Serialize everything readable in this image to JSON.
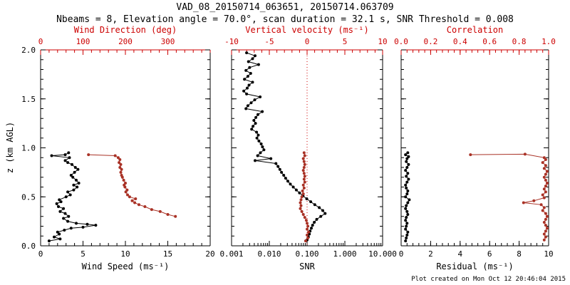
{
  "header": {
    "title": "VAD_08_20150714_063651, 20150714.063709",
    "subtitle": "Nbeams = 8, Elevation angle = 70.0°, scan duration = 32.1 s, SNR Threshold = 0.008"
  },
  "footer": {
    "created": "Plot created on Mon Oct 12 20:46:04 2015"
  },
  "ylabel": "z (km AGL)",
  "colors": {
    "axis_red": "#cc0000",
    "data_red": "#a93226",
    "data_black": "#000000"
  },
  "chart_data": [
    {
      "type": "line",
      "name": "wind-panel",
      "xlabel_bottom": "Wind Speed (ms⁻¹)",
      "xlabel_top": "Wind Direction (deg)",
      "xscale_bottom": "linear",
      "xlim_bottom": [
        0,
        20
      ],
      "xticks_bottom": [
        0,
        5,
        10,
        15,
        20
      ],
      "xtick_labels_bottom": [
        "0",
        "5",
        "10",
        "15",
        "20"
      ],
      "xlim_top": [
        0,
        400
      ],
      "xticks_top": [
        0,
        100,
        200,
        300
      ],
      "xtick_labels_top": [
        "0",
        "100",
        "200",
        "300"
      ],
      "ylim": [
        0,
        2
      ],
      "yticks": [
        0,
        0.5,
        1,
        1.5,
        2
      ],
      "ytick_labels": [
        "0.0",
        "0.5",
        "1.0",
        "1.5",
        "2.0"
      ],
      "show_ytick_labels": true,
      "series": [
        {
          "name": "wind-speed",
          "axis": "bottom",
          "color": "black",
          "points": [
            [
              1.0,
              0.05
            ],
            [
              2.3,
              0.07
            ],
            [
              1.6,
              0.09
            ],
            [
              2.2,
              0.12
            ],
            [
              2.0,
              0.14
            ],
            [
              2.8,
              0.16
            ],
            [
              3.6,
              0.18
            ],
            [
              5.0,
              0.19
            ],
            [
              6.5,
              0.21
            ],
            [
              5.5,
              0.22
            ],
            [
              4.2,
              0.23
            ],
            [
              3.2,
              0.25
            ],
            [
              2.7,
              0.28
            ],
            [
              3.3,
              0.3
            ],
            [
              2.9,
              0.33
            ],
            [
              2.3,
              0.35
            ],
            [
              2.7,
              0.38
            ],
            [
              2.1,
              0.4
            ],
            [
              1.9,
              0.43
            ],
            [
              2.4,
              0.45
            ],
            [
              2.2,
              0.47
            ],
            [
              3.0,
              0.5
            ],
            [
              3.5,
              0.52
            ],
            [
              3.2,
              0.55
            ],
            [
              3.9,
              0.57
            ],
            [
              4.3,
              0.6
            ],
            [
              3.9,
              0.62
            ],
            [
              4.5,
              0.64
            ],
            [
              4.2,
              0.67
            ],
            [
              3.8,
              0.7
            ],
            [
              3.6,
              0.72
            ],
            [
              4.0,
              0.75
            ],
            [
              4.4,
              0.78
            ],
            [
              4.1,
              0.8
            ],
            [
              3.7,
              0.83
            ],
            [
              3.2,
              0.85
            ],
            [
              2.9,
              0.87
            ],
            [
              3.4,
              0.9
            ],
            [
              1.3,
              0.92
            ],
            [
              2.9,
              0.93
            ],
            [
              3.3,
              0.95
            ]
          ]
        },
        {
          "name": "wind-direction",
          "axis": "top",
          "color": "red",
          "points": [
            [
              318,
              0.3
            ],
            [
              300,
              0.32
            ],
            [
              282,
              0.35
            ],
            [
              262,
              0.37
            ],
            [
              246,
              0.4
            ],
            [
              232,
              0.42
            ],
            [
              222,
              0.44
            ],
            [
              216,
              0.46
            ],
            [
              224,
              0.48
            ],
            [
              210,
              0.5
            ],
            [
              205,
              0.52
            ],
            [
              201,
              0.55
            ],
            [
              204,
              0.57
            ],
            [
              199,
              0.6
            ],
            [
              197,
              0.62
            ],
            [
              200,
              0.64
            ],
            [
              196,
              0.67
            ],
            [
              193,
              0.7
            ],
            [
              191,
              0.72
            ],
            [
              189,
              0.75
            ],
            [
              191,
              0.78
            ],
            [
              187,
              0.8
            ],
            [
              189,
              0.83
            ],
            [
              185,
              0.85
            ],
            [
              187,
              0.88
            ],
            [
              183,
              0.9
            ],
            [
              176,
              0.92
            ],
            [
              113,
              0.93
            ]
          ]
        }
      ]
    },
    {
      "type": "line",
      "name": "snr-panel",
      "xlabel_bottom": "SNR",
      "xlabel_top": "Vertical velocity (ms⁻¹)",
      "xscale_bottom": "log",
      "xlim_bottom": [
        0.001,
        10
      ],
      "xticks_bottom": [
        0.001,
        0.01,
        0.1,
        1,
        10
      ],
      "xtick_labels_bottom": [
        "0.001",
        "0.010",
        "0.100",
        "1.000",
        "10.000"
      ],
      "xlim_top": [
        -10,
        10
      ],
      "xticks_top": [
        -10,
        -5,
        0,
        5,
        10
      ],
      "xtick_labels_top": [
        "-10",
        "-5",
        "0",
        "5",
        "10"
      ],
      "ylim": [
        0,
        2
      ],
      "yticks": [
        0,
        0.5,
        1,
        1.5,
        2
      ],
      "ytick_labels": [
        "0.0",
        "0.5",
        "1.0",
        "1.5",
        "2.0"
      ],
      "show_ytick_labels": false,
      "refline_top": 0,
      "series": [
        {
          "name": "snr",
          "axis": "bottom",
          "color": "black",
          "points": [
            [
              0.0025,
              1.97
            ],
            [
              0.0042,
              1.94
            ],
            [
              0.0036,
              1.91
            ],
            [
              0.0028,
              1.88
            ],
            [
              0.0052,
              1.85
            ],
            [
              0.003,
              1.82
            ],
            [
              0.0024,
              1.79
            ],
            [
              0.0032,
              1.76
            ],
            [
              0.0027,
              1.73
            ],
            [
              0.0022,
              1.7
            ],
            [
              0.0036,
              1.67
            ],
            [
              0.0029,
              1.64
            ],
            [
              0.0026,
              1.61
            ],
            [
              0.0021,
              1.58
            ],
            [
              0.0025,
              1.55
            ],
            [
              0.0057,
              1.52
            ],
            [
              0.0041,
              1.49
            ],
            [
              0.0033,
              1.46
            ],
            [
              0.0027,
              1.43
            ],
            [
              0.0024,
              1.4
            ],
            [
              0.0065,
              1.37
            ],
            [
              0.005,
              1.34
            ],
            [
              0.0044,
              1.31
            ],
            [
              0.0039,
              1.28
            ],
            [
              0.0043,
              1.25
            ],
            [
              0.0037,
              1.22
            ],
            [
              0.0034,
              1.19
            ],
            [
              0.0046,
              1.16
            ],
            [
              0.0051,
              1.13
            ],
            [
              0.0047,
              1.1
            ],
            [
              0.0053,
              1.07
            ],
            [
              0.0061,
              1.04
            ],
            [
              0.0066,
              1.01
            ],
            [
              0.0072,
              0.98
            ],
            [
              0.0058,
              0.95
            ],
            [
              0.0049,
              0.92
            ],
            [
              0.011,
              0.89
            ],
            [
              0.0042,
              0.87
            ],
            [
              0.015,
              0.84
            ],
            [
              0.017,
              0.81
            ],
            [
              0.019,
              0.78
            ],
            [
              0.021,
              0.75
            ],
            [
              0.024,
              0.72
            ],
            [
              0.027,
              0.69
            ],
            [
              0.031,
              0.66
            ],
            [
              0.036,
              0.63
            ],
            [
              0.043,
              0.6
            ],
            [
              0.052,
              0.57
            ],
            [
              0.063,
              0.54
            ],
            [
              0.078,
              0.51
            ],
            [
              0.098,
              0.48
            ],
            [
              0.125,
              0.45
            ],
            [
              0.16,
              0.42
            ],
            [
              0.21,
              0.39
            ],
            [
              0.26,
              0.36
            ],
            [
              0.3,
              0.33
            ],
            [
              0.23,
              0.3
            ],
            [
              0.18,
              0.27
            ],
            [
              0.155,
              0.24
            ],
            [
              0.14,
              0.21
            ],
            [
              0.13,
              0.18
            ],
            [
              0.12,
              0.15
            ],
            [
              0.115,
              0.12
            ],
            [
              0.108,
              0.09
            ],
            [
              0.1,
              0.06
            ]
          ]
        },
        {
          "name": "vertical-velocity",
          "axis": "top",
          "color": "red",
          "points": [
            [
              -0.4,
              0.95
            ],
            [
              -0.3,
              0.92
            ],
            [
              -0.5,
              0.89
            ],
            [
              -0.4,
              0.86
            ],
            [
              -0.3,
              0.83
            ],
            [
              -0.4,
              0.8
            ],
            [
              -0.5,
              0.77
            ],
            [
              -0.4,
              0.74
            ],
            [
              -0.3,
              0.71
            ],
            [
              -0.4,
              0.68
            ],
            [
              -0.3,
              0.65
            ],
            [
              -0.5,
              0.62
            ],
            [
              -0.4,
              0.59
            ],
            [
              -0.6,
              0.56
            ],
            [
              -0.5,
              0.53
            ],
            [
              -0.7,
              0.5
            ],
            [
              -0.8,
              0.47
            ],
            [
              -0.9,
              0.44
            ],
            [
              -0.8,
              0.41
            ],
            [
              -0.9,
              0.38
            ],
            [
              -0.7,
              0.35
            ],
            [
              -0.5,
              0.32
            ],
            [
              -0.3,
              0.29
            ],
            [
              -0.1,
              0.26
            ],
            [
              0.0,
              0.23
            ],
            [
              0.1,
              0.2
            ],
            [
              0.0,
              0.17
            ],
            [
              0.2,
              0.14
            ],
            [
              0.0,
              0.11
            ],
            [
              0.1,
              0.08
            ],
            [
              -0.2,
              0.05
            ]
          ]
        }
      ]
    },
    {
      "type": "line",
      "name": "residual-panel",
      "xlabel_bottom": "Residual (ms⁻¹)",
      "xlabel_top": "Correlation",
      "xscale_bottom": "linear",
      "xlim_bottom": [
        0,
        10
      ],
      "xticks_bottom": [
        0,
        2,
        4,
        6,
        8,
        10
      ],
      "xtick_labels_bottom": [
        "0",
        "2",
        "4",
        "6",
        "8",
        "10"
      ],
      "xlim_top": [
        0,
        1
      ],
      "xticks_top": [
        0,
        0.2,
        0.4,
        0.6,
        0.8,
        1
      ],
      "xtick_labels_top": [
        "0.0",
        "0.2",
        "0.4",
        "0.6",
        "0.8",
        "1.0"
      ],
      "ylim": [
        0,
        2
      ],
      "yticks": [
        0,
        0.5,
        1,
        1.5,
        2
      ],
      "ytick_labels": [
        "0.0",
        "0.5",
        "1.0",
        "1.5",
        "2.0"
      ],
      "show_ytick_labels": false,
      "series": [
        {
          "name": "residual",
          "axis": "bottom",
          "color": "black",
          "points": [
            [
              0.45,
              0.95
            ],
            [
              0.3,
              0.93
            ],
            [
              0.5,
              0.91
            ],
            [
              0.4,
              0.89
            ],
            [
              0.35,
              0.86
            ],
            [
              0.5,
              0.83
            ],
            [
              0.4,
              0.8
            ],
            [
              0.3,
              0.77
            ],
            [
              0.45,
              0.74
            ],
            [
              0.35,
              0.71
            ],
            [
              0.5,
              0.68
            ],
            [
              0.4,
              0.65
            ],
            [
              0.3,
              0.62
            ],
            [
              0.35,
              0.59
            ],
            [
              0.45,
              0.56
            ],
            [
              0.4,
              0.53
            ],
            [
              0.3,
              0.5
            ],
            [
              0.55,
              0.47
            ],
            [
              0.45,
              0.44
            ],
            [
              0.35,
              0.41
            ],
            [
              0.3,
              0.38
            ],
            [
              0.4,
              0.35
            ],
            [
              0.45,
              0.32
            ],
            [
              0.35,
              0.29
            ],
            [
              0.3,
              0.26
            ],
            [
              0.4,
              0.23
            ],
            [
              0.35,
              0.2
            ],
            [
              0.3,
              0.17
            ],
            [
              0.45,
              0.14
            ],
            [
              0.4,
              0.11
            ],
            [
              0.35,
              0.08
            ],
            [
              0.3,
              0.05
            ]
          ]
        },
        {
          "name": "correlation",
          "axis": "top",
          "color": "red",
          "points": [
            [
              0.47,
              0.93
            ],
            [
              0.84,
              0.935
            ],
            [
              0.97,
              0.9
            ],
            [
              0.98,
              0.88
            ],
            [
              0.96,
              0.85
            ],
            [
              0.98,
              0.82
            ],
            [
              0.97,
              0.79
            ],
            [
              0.99,
              0.76
            ],
            [
              0.98,
              0.73
            ],
            [
              0.97,
              0.7
            ],
            [
              0.98,
              0.67
            ],
            [
              0.99,
              0.64
            ],
            [
              0.98,
              0.61
            ],
            [
              0.97,
              0.58
            ],
            [
              0.98,
              0.55
            ],
            [
              0.96,
              0.52
            ],
            [
              0.97,
              0.49
            ],
            [
              0.9,
              0.46
            ],
            [
              0.83,
              0.44
            ],
            [
              0.95,
              0.42
            ],
            [
              0.97,
              0.39
            ],
            [
              0.96,
              0.36
            ],
            [
              0.98,
              0.33
            ],
            [
              0.99,
              0.3
            ],
            [
              0.98,
              0.27
            ],
            [
              0.97,
              0.24
            ],
            [
              0.98,
              0.21
            ],
            [
              0.99,
              0.18
            ],
            [
              0.98,
              0.15
            ],
            [
              0.97,
              0.12
            ],
            [
              0.98,
              0.09
            ],
            [
              0.97,
              0.06
            ]
          ]
        }
      ]
    }
  ]
}
